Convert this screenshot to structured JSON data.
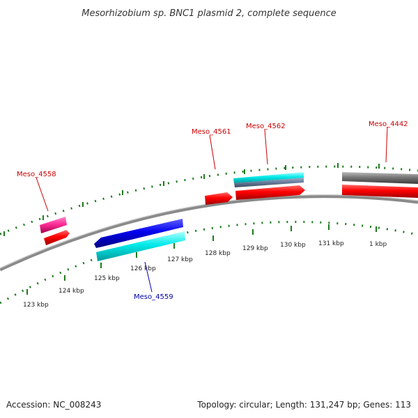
{
  "title": "Mesorhizobium sp. BNC1 plasmid 2, complete sequence",
  "footer": {
    "accession": "Accession: NC_008243",
    "summary": "Topology: circular; Length: 131,247 bp; Genes: 113"
  },
  "ticks": [
    "123 kbp",
    "124 kbp",
    "125 kbp",
    "126 kbp",
    "127 kbp",
    "128 kbp",
    "129 kbp",
    "130 kbp",
    "131 kbp",
    "1 kbp"
  ],
  "genes": [
    {
      "name": "Meso_4558",
      "color": "#cc0000"
    },
    {
      "name": "Meso_4559",
      "color": "#0000aa"
    },
    {
      "name": "Meso_4561",
      "color": "#cc0000"
    },
    {
      "name": "Meso_4562",
      "color": "#cc0000"
    },
    {
      "name": "Meso_4442",
      "color": "#cc0000"
    }
  ],
  "colors": {
    "backbone": "#8a8a8a",
    "tick_marks": "#1e7a1e",
    "forward_cds": "#ff0000",
    "reverse_cds": "#0000ee",
    "rna": "#00e5e5",
    "pink_feature": "#ff3399",
    "gray_feature": "#777777"
  }
}
